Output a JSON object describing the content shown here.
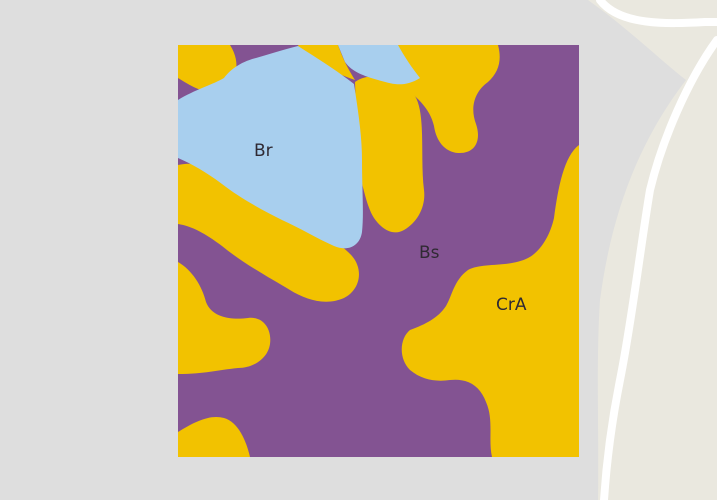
{
  "map": {
    "colors": {
      "background": "#dedede",
      "base_land": "#eae8df",
      "road": "#ffffff",
      "purple_zone": "#835392",
      "yellow_zone": "#f2c200",
      "blue_zone": "#a8cfee"
    },
    "labels": {
      "br": "Br",
      "bs": "Bs",
      "cra": "CrA"
    }
  }
}
